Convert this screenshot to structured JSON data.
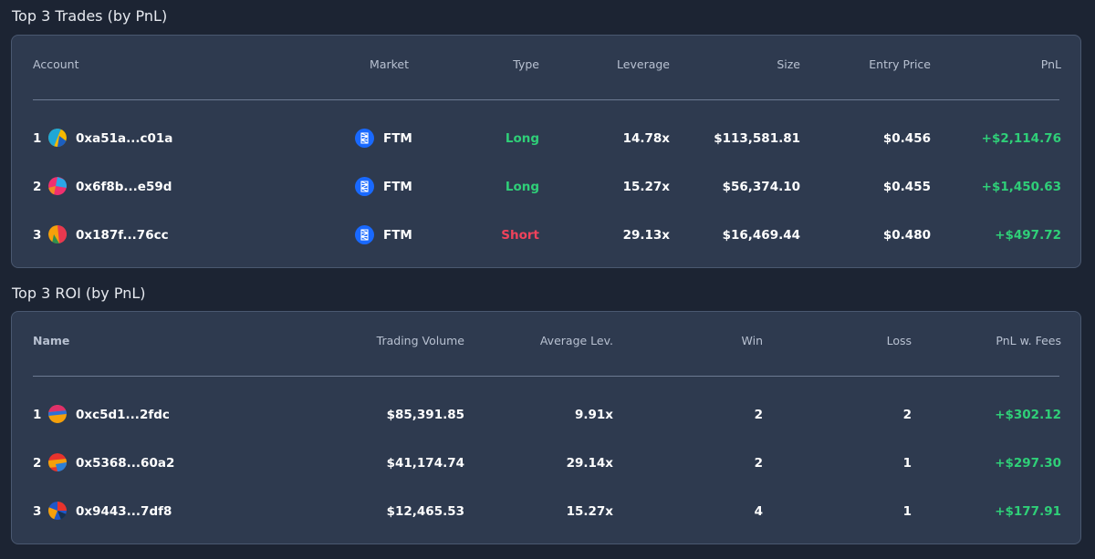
{
  "trades": {
    "title": "Top 3 Trades (by PnL)",
    "headers": {
      "account": "Account",
      "market": "Market",
      "type": "Type",
      "leverage": "Leverage",
      "size": "Size",
      "entry_price": "Entry Price",
      "pnl": "PnL"
    },
    "rows": [
      {
        "rank": "1",
        "account": "0xa51a...c01a",
        "market": "FTM",
        "type": "Long",
        "leverage": "14.78x",
        "size": "$113,581.81",
        "entry_price": "$0.456",
        "pnl": "+$2,114.76"
      },
      {
        "rank": "2",
        "account": "0x6f8b...e59d",
        "market": "FTM",
        "type": "Long",
        "leverage": "15.27x",
        "size": "$56,374.10",
        "entry_price": "$0.455",
        "pnl": "+$1,450.63"
      },
      {
        "rank": "3",
        "account": "0x187f...76cc",
        "market": "FTM",
        "type": "Short",
        "leverage": "29.13x",
        "size": "$16,469.44",
        "entry_price": "$0.480",
        "pnl": "+$497.72"
      }
    ]
  },
  "roi": {
    "title": "Top 3 ROI (by PnL)",
    "headers": {
      "name": "Name",
      "trading_volume": "Trading Volume",
      "average_lev": "Average Lev.",
      "win": "Win",
      "loss": "Loss",
      "pnl_fees": "PnL w. Fees"
    },
    "rows": [
      {
        "rank": "1",
        "name": "0xc5d1...2fdc",
        "trading_volume": "$85,391.85",
        "average_lev": "9.91x",
        "win": "2",
        "loss": "2",
        "pnl_fees": "+$302.12"
      },
      {
        "rank": "2",
        "name": "0x5368...60a2",
        "trading_volume": "$41,174.74",
        "average_lev": "29.14x",
        "win": "2",
        "loss": "1",
        "pnl_fees": "+$297.30"
      },
      {
        "rank": "3",
        "name": "0x9443...7df8",
        "trading_volume": "$12,465.53",
        "average_lev": "15.27x",
        "win": "4",
        "loss": "1",
        "pnl_fees": "+$177.91"
      }
    ]
  },
  "colors": {
    "background": "#1c2433",
    "panel": "#2e3a4f",
    "long": "#2fcf78",
    "short": "#f0425b",
    "pnl_positive": "#2fcf78",
    "ftm_brand": "#1969ff"
  },
  "icons": {
    "market": "fantom-icon",
    "avatar": "jazzicon-avatar"
  }
}
